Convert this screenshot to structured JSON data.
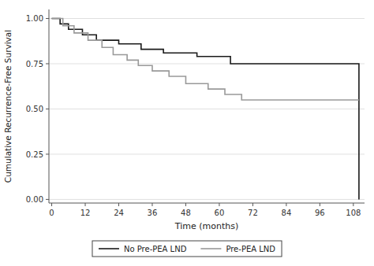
{
  "chart_data": {
    "type": "step",
    "title": "",
    "xlabel": "Time (months)",
    "ylabel": "Cumulative Recurrence-Free Survival",
    "xlim": [
      -1,
      112
    ],
    "ylim": [
      -0.02,
      1.05
    ],
    "xticks": [
      0,
      12,
      24,
      36,
      48,
      60,
      72,
      84,
      96,
      108
    ],
    "yticks": [
      {
        "value": 0,
        "label": "0.00"
      },
      {
        "value": 0.25,
        "label": "0.25"
      },
      {
        "value": 0.5,
        "label": "0.50"
      },
      {
        "value": 0.75,
        "label": "0.75"
      },
      {
        "value": 1,
        "label": "1.00"
      }
    ],
    "grid": true,
    "legend": "bottom",
    "series": [
      {
        "name": "No Pre-PEA LND",
        "color": "#1a1a1a",
        "x": [
          0,
          3,
          6,
          11,
          16,
          24,
          32,
          40,
          52,
          64,
          110,
          110
        ],
        "values": [
          1.0,
          0.97,
          0.94,
          0.91,
          0.88,
          0.86,
          0.83,
          0.81,
          0.79,
          0.75,
          0.75,
          0.0
        ]
      },
      {
        "name": "Pre-PEA LND",
        "color": "#999999",
        "x": [
          0,
          4,
          8,
          13,
          18,
          22,
          27,
          31,
          36,
          42,
          48,
          56,
          62,
          68,
          110
        ],
        "values": [
          1.0,
          0.96,
          0.92,
          0.88,
          0.84,
          0.8,
          0.77,
          0.74,
          0.71,
          0.68,
          0.64,
          0.61,
          0.58,
          0.55,
          0.55
        ]
      }
    ]
  }
}
